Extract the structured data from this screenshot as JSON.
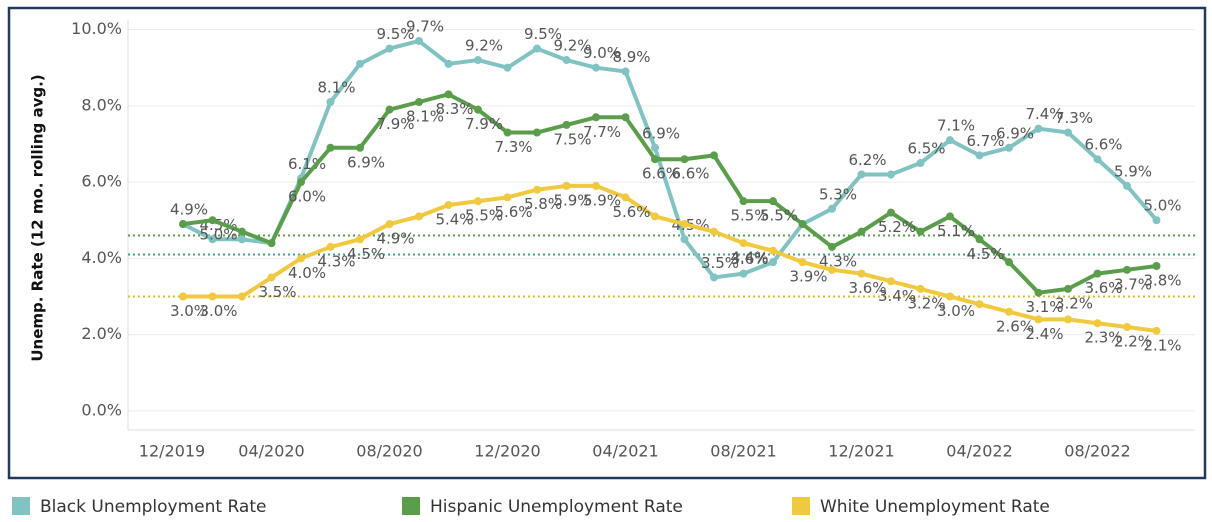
{
  "chart_data": {
    "type": "line",
    "y_label": "Unemp. Rate (12 mo. rolling avg.)",
    "categories": [
      "12/2019",
      null,
      null,
      null,
      "04/2020",
      null,
      null,
      null,
      "08/2020",
      null,
      null,
      null,
      "12/2020",
      null,
      null,
      null,
      "04/2021",
      null,
      null,
      null,
      "08/2021",
      null,
      null,
      null,
      "12/2021",
      null,
      null,
      null,
      "04/2022",
      null,
      null,
      null,
      "08/2022",
      null,
      null
    ],
    "series": [
      {
        "name": "Black Unemployment Rate",
        "color": "#80c3c2",
        "values": [
          null,
          4.9,
          4.5,
          4.5,
          4.4,
          6.1,
          8.1,
          9.1,
          9.5,
          9.7,
          9.1,
          9.2,
          9.0,
          9.5,
          9.2,
          9.0,
          8.9,
          6.9,
          4.5,
          3.5,
          3.6,
          3.9,
          4.9,
          5.3,
          6.2,
          6.2,
          6.5,
          7.1,
          6.7,
          6.9,
          7.4,
          7.3,
          6.6,
          5.9,
          5.0
        ],
        "value_labels": [
          null,
          "4.9%",
          "4.5%",
          null,
          null,
          "6.1%",
          "8.1%",
          null,
          "9.5%",
          "9.7%",
          null,
          "9.2%",
          null,
          "9.5%",
          "9.2%",
          "9.0%",
          "8.9%",
          "6.9%",
          "4.5%",
          "3.5%",
          "3.6%",
          null,
          null,
          "5.3%",
          "6.2%",
          null,
          "6.5%",
          "7.1%",
          "6.7%",
          "6.9%",
          "7.4%",
          "7.3%",
          "6.6%",
          "5.9%",
          "5.0%"
        ]
      },
      {
        "name": "Hispanic Unemployment Rate",
        "color": "#5a9e4b",
        "values": [
          null,
          4.9,
          5.0,
          4.7,
          4.4,
          6.0,
          6.9,
          6.9,
          7.9,
          8.1,
          8.3,
          7.9,
          7.3,
          7.3,
          7.5,
          7.7,
          7.7,
          6.6,
          6.6,
          6.7,
          5.5,
          5.5,
          4.9,
          4.3,
          4.7,
          5.2,
          4.7,
          5.1,
          4.5,
          3.9,
          3.1,
          3.2,
          3.6,
          3.7,
          3.8
        ],
        "value_labels": [
          null,
          null,
          "5.0%",
          null,
          null,
          "6.0%",
          null,
          "6.9%",
          "7.9%",
          "8.1%",
          "8.3%",
          "7.9%",
          "7.3%",
          null,
          "7.5%",
          "7.7%",
          null,
          "6.6%",
          "6.6%",
          null,
          "5.5%",
          "5.5%",
          null,
          "4.3%",
          null,
          "5.2%",
          null,
          "5.1%",
          "4.5%",
          null,
          "3.1%",
          "3.2%",
          "3.6%",
          "3.7%",
          "3.8%"
        ]
      },
      {
        "name": "White Unemployment Rate",
        "color": "#f0c93f",
        "values": [
          null,
          3.0,
          3.0,
          3.0,
          3.5,
          4.0,
          4.3,
          4.5,
          4.9,
          5.1,
          5.4,
          5.5,
          5.6,
          5.8,
          5.9,
          5.9,
          5.6,
          5.1,
          4.9,
          4.7,
          4.4,
          4.2,
          3.9,
          3.7,
          3.6,
          3.4,
          3.2,
          3.0,
          2.8,
          2.6,
          2.4,
          2.4,
          2.3,
          2.2,
          2.1
        ],
        "value_labels": [
          null,
          "3.0%",
          "3.0%",
          null,
          "3.5%",
          "4.0%",
          "4.3%",
          "4.5%",
          "4.9%",
          null,
          "5.4%",
          "5.5%",
          "5.6%",
          "5.8%",
          "5.9%",
          "5.9%",
          "5.6%",
          null,
          null,
          null,
          "4.4%",
          null,
          "3.9%",
          null,
          "3.6%",
          "3.4%",
          "3.2%",
          "3.0%",
          null,
          "2.6%",
          "2.4%",
          null,
          "2.3%",
          "2.2%",
          "2.1%"
        ]
      }
    ],
    "reference_lines": [
      {
        "value": 4.6,
        "color": "#5a9e4b"
      },
      {
        "value": 4.1,
        "color": "#3f9c95"
      },
      {
        "value": 3.0,
        "color": "#e5bb2c"
      }
    ],
    "ylim": [
      -0.5,
      10.25
    ],
    "yticks": [
      {
        "value": 0,
        "label": "0.0%"
      },
      {
        "value": 2,
        "label": "2.0%"
      },
      {
        "value": 4,
        "label": "4.0%"
      },
      {
        "value": 6,
        "label": "6.0%"
      },
      {
        "value": 8,
        "label": "8.0%"
      },
      {
        "value": 10,
        "label": "10.0%"
      }
    ],
    "grid": true
  }
}
